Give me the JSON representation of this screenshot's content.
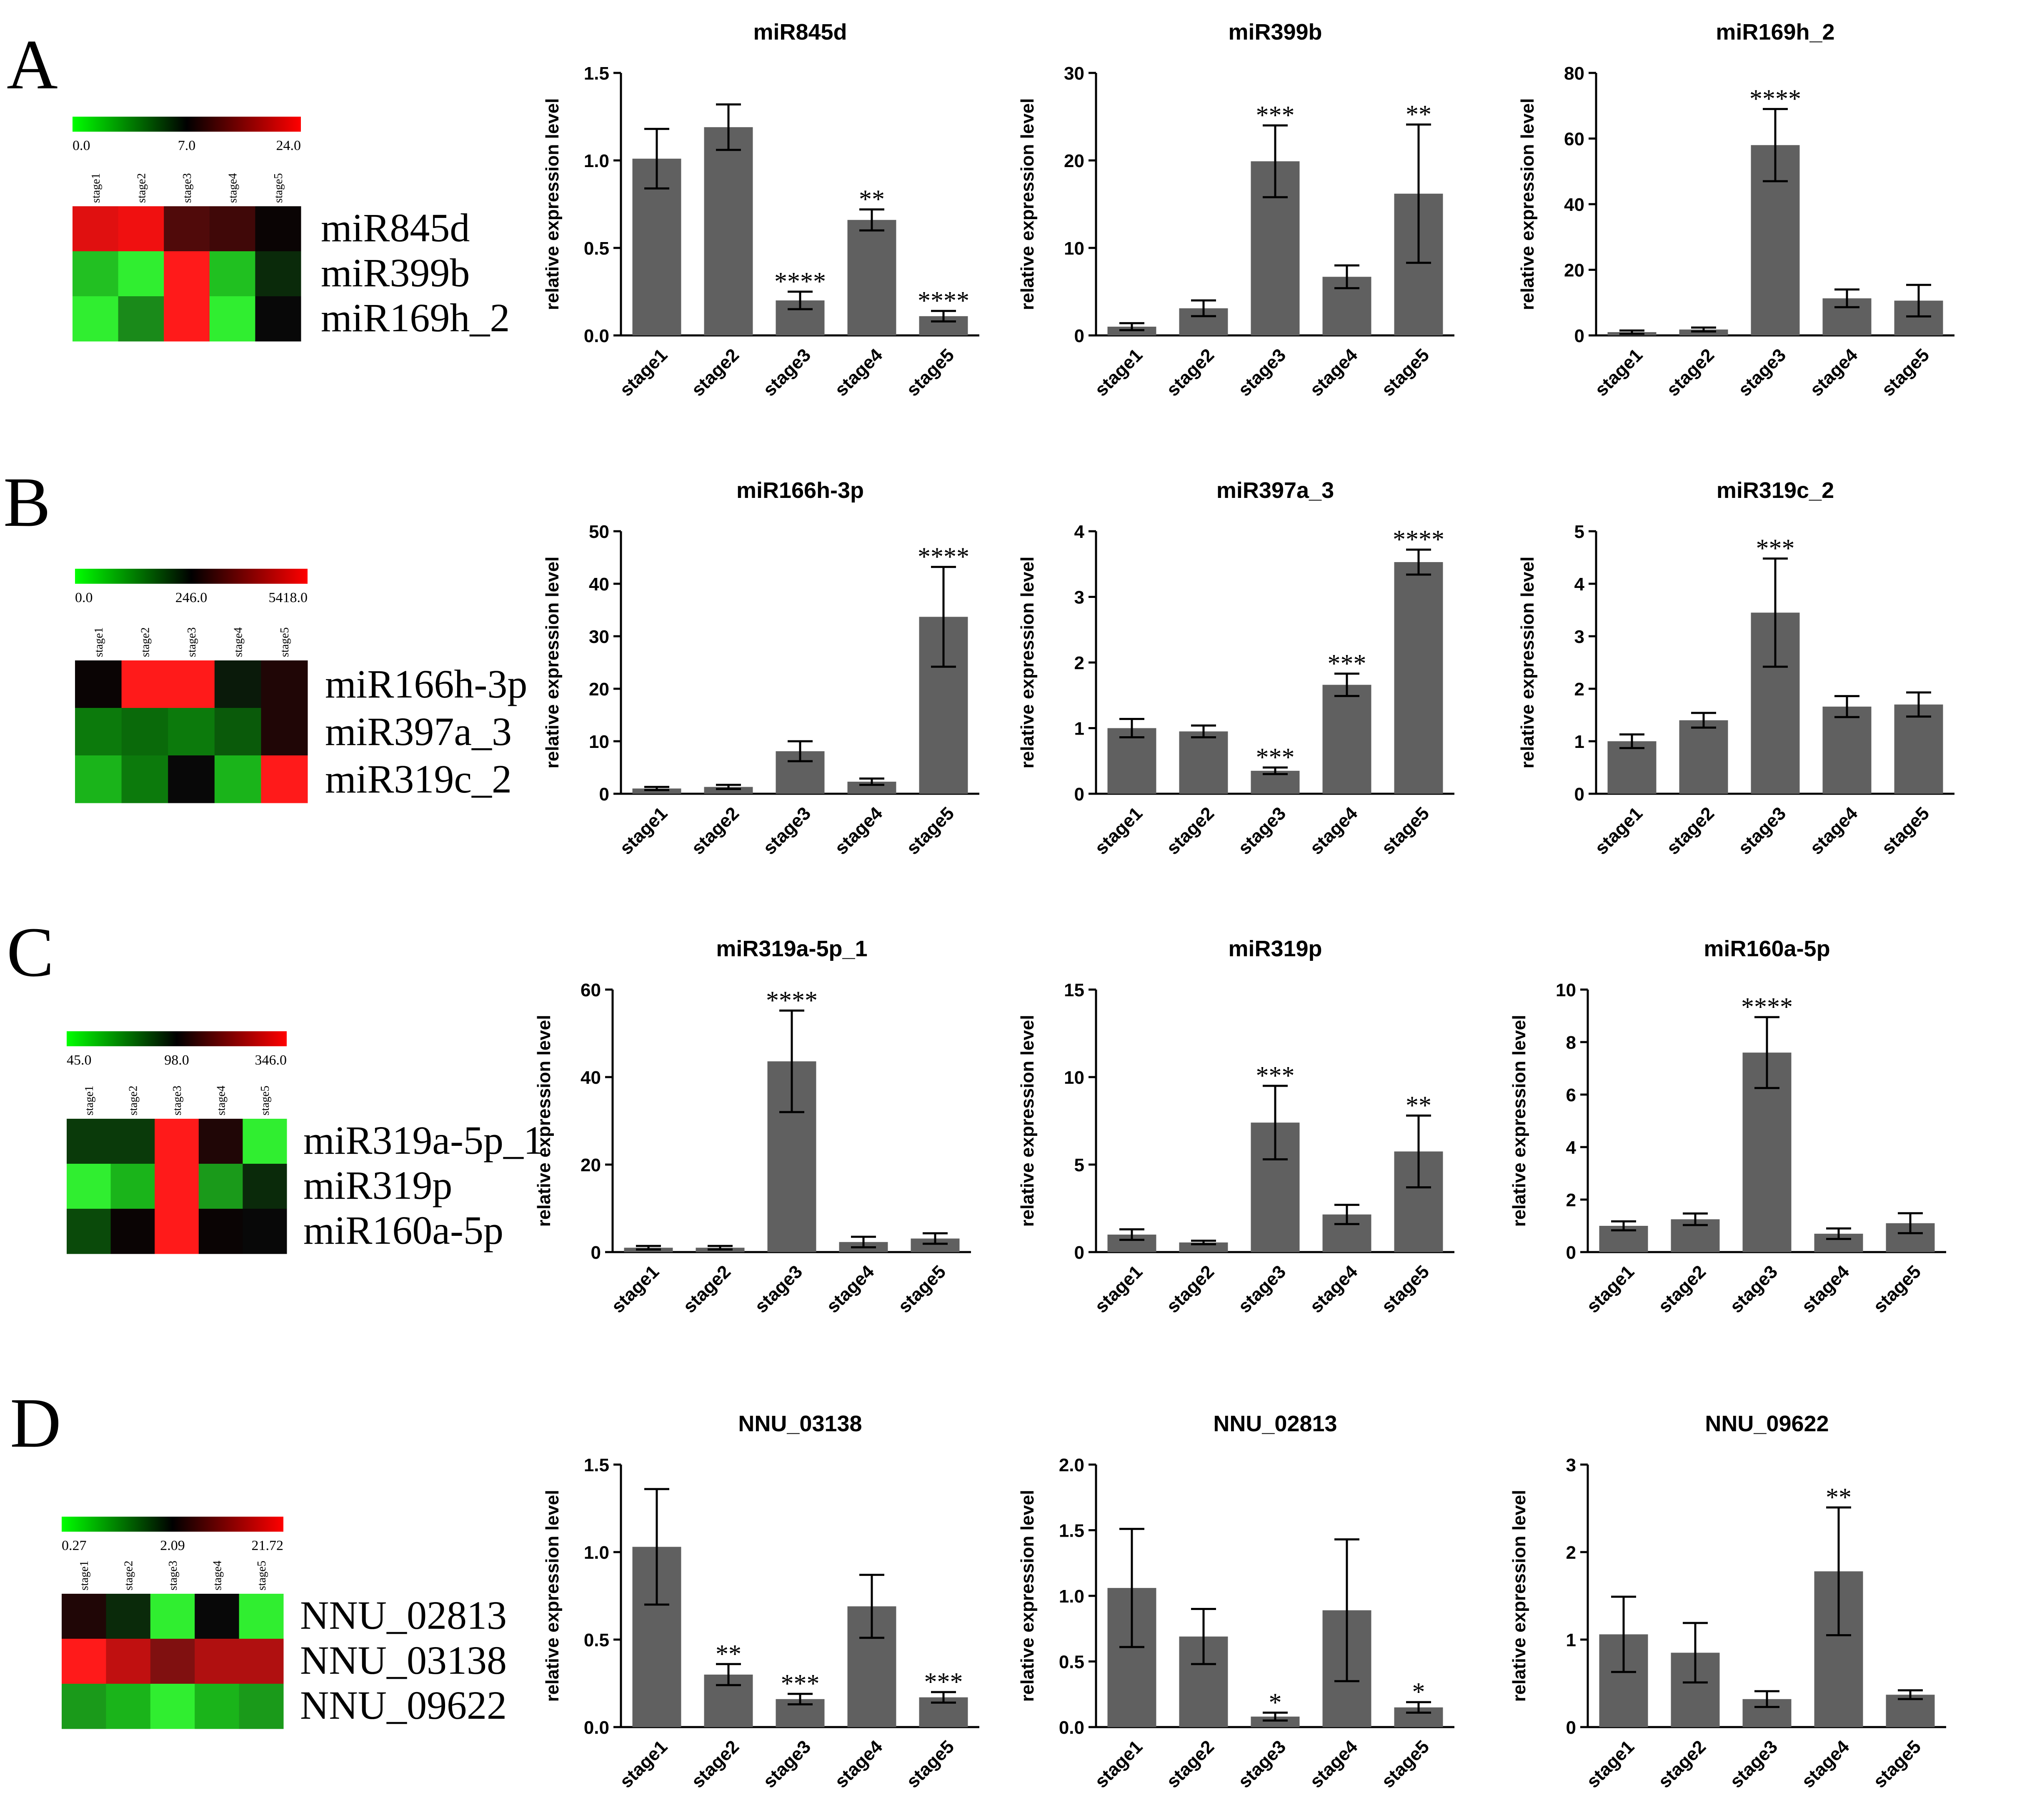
{
  "panels": [
    {
      "letter": "A",
      "heatmap": {
        "scale_labels": [
          "0.0",
          "7.0",
          "24.0"
        ],
        "stages": [
          "stage1",
          "stage2",
          "stage3",
          "stage4",
          "stage5"
        ],
        "rows": [
          {
            "label": "miR845d",
            "colors": [
              "#e01010",
              "#f01010",
              "#500a0a",
              "#400808",
              "#0a0404"
            ]
          },
          {
            "label": "miR399b",
            "colors": [
              "#22c022",
              "#30ee30",
              "#ff1a1a",
              "#20c020",
              "#0a2a0a"
            ]
          },
          {
            "label": "miR169h_2",
            "colors": [
              "#30ee30",
              "#1a8a1a",
              "#ff1a1a",
              "#30ee30",
              "#080808"
            ]
          }
        ]
      },
      "charts": [
        {
          "type": "bar",
          "title": "miR845d",
          "ylabel": "relative expression level",
          "categories": [
            "stage1",
            "stage2",
            "stage3",
            "stage4",
            "stage5"
          ],
          "values": [
            1.01,
            1.19,
            0.2,
            0.66,
            0.11
          ],
          "errors": [
            0.17,
            0.13,
            0.05,
            0.06,
            0.03
          ],
          "sig": [
            "",
            "",
            "****",
            "**",
            "****"
          ],
          "ylim": [
            0,
            1.5
          ],
          "yticks": [
            "0.0",
            "0.5",
            "1.0",
            "1.5"
          ]
        },
        {
          "type": "bar",
          "title": "miR399b",
          "ylabel": "relative expression level",
          "categories": [
            "stage1",
            "stage2",
            "stage3",
            "stage4",
            "stage5"
          ],
          "values": [
            1.0,
            3.1,
            19.9,
            6.7,
            16.2
          ],
          "errors": [
            0.4,
            0.9,
            4.1,
            1.3,
            7.9
          ],
          "sig": [
            "",
            "",
            "***",
            "",
            "**"
          ],
          "ylim": [
            0,
            30
          ],
          "yticks": [
            "0",
            "10",
            "20",
            "30"
          ]
        },
        {
          "type": "bar",
          "title": "miR169h_2",
          "ylabel": "relative expression level",
          "categories": [
            "stage1",
            "stage2",
            "stage3",
            "stage4",
            "stage5"
          ],
          "values": [
            1.0,
            1.8,
            58,
            11.3,
            10.6
          ],
          "errors": [
            0.5,
            0.6,
            11,
            2.7,
            4.8
          ],
          "sig": [
            "",
            "",
            "****",
            "",
            ""
          ],
          "ylim": [
            0,
            80
          ],
          "yticks": [
            "0",
            "20",
            "40",
            "60",
            "80"
          ]
        }
      ]
    },
    {
      "letter": "B",
      "heatmap": {
        "scale_labels": [
          "0.0",
          "246.0",
          "5418.0"
        ],
        "stages": [
          "stage1",
          "stage2",
          "stage3",
          "stage4",
          "stage5"
        ],
        "rows": [
          {
            "label": "miR166h-3p",
            "colors": [
              "#0a0404",
              "#ff1a1a",
              "#ff1a1a",
              "#0a1a0a",
              "#200606"
            ]
          },
          {
            "label": "miR397a_3",
            "colors": [
              "#0c7a0c",
              "#0a6a0a",
              "#0c7a0c",
              "#0a5a0a",
              "#200606"
            ]
          },
          {
            "label": "miR319c_2",
            "colors": [
              "#1ab41a",
              "#0c7a0c",
              "#080808",
              "#1ab41a",
              "#ff1a1a"
            ]
          }
        ]
      },
      "charts": [
        {
          "type": "bar",
          "title": "miR166h-3p",
          "ylabel": "relative expression level",
          "categories": [
            "stage1",
            "stage2",
            "stage3",
            "stage4",
            "stage5"
          ],
          "values": [
            1.0,
            1.3,
            8.1,
            2.3,
            33.7
          ],
          "errors": [
            0.3,
            0.4,
            1.9,
            0.6,
            9.5
          ],
          "sig": [
            "",
            "",
            "",
            "",
            "****"
          ],
          "ylim": [
            0,
            50
          ],
          "yticks": [
            "0",
            "10",
            "20",
            "30",
            "40",
            "50"
          ]
        },
        {
          "type": "bar",
          "title": "miR397a_3",
          "ylabel": "relative expression level",
          "categories": [
            "stage1",
            "stage2",
            "stage3",
            "stage4",
            "stage5"
          ],
          "values": [
            1.0,
            0.95,
            0.35,
            1.66,
            3.53
          ],
          "errors": [
            0.14,
            0.09,
            0.05,
            0.17,
            0.19
          ],
          "sig": [
            "",
            "",
            "***",
            "***",
            "****"
          ],
          "ylim": [
            0,
            4
          ],
          "yticks": [
            "0",
            "1",
            "2",
            "3",
            "4"
          ]
        },
        {
          "type": "bar",
          "title": "miR319c_2",
          "ylabel": "relative expression level",
          "categories": [
            "stage1",
            "stage2",
            "stage3",
            "stage4",
            "stage5"
          ],
          "values": [
            1.0,
            1.4,
            3.45,
            1.66,
            1.7
          ],
          "errors": [
            0.13,
            0.14,
            1.03,
            0.2,
            0.23
          ],
          "sig": [
            "",
            "",
            "***",
            "",
            ""
          ],
          "ylim": [
            0,
            5
          ],
          "yticks": [
            "0",
            "1",
            "2",
            "3",
            "4",
            "5"
          ]
        }
      ]
    },
    {
      "letter": "C",
      "heatmap": {
        "scale_labels": [
          "45.0",
          "98.0",
          "346.0"
        ],
        "stages": [
          "stage1",
          "stage2",
          "stage3",
          "stage4",
          "stage5"
        ],
        "rows": [
          {
            "label": "miR319a-5p_1",
            "colors": [
              "#0a3a0a",
              "#0a3a0a",
              "#ff1a1a",
              "#200606",
              "#30ee30"
            ]
          },
          {
            "label": "miR319p",
            "colors": [
              "#30ee30",
              "#1ab41a",
              "#ff1a1a",
              "#1a9a1a",
              "#0a2a0a"
            ]
          },
          {
            "label": "miR160a-5p",
            "colors": [
              "#0a4a0a",
              "#0a0404",
              "#ff1a1a",
              "#0a0404",
              "#080808"
            ]
          }
        ]
      },
      "charts": [
        {
          "type": "bar",
          "title": "miR319a-5p_1",
          "ylabel": "relative expression level",
          "categories": [
            "stage1",
            "stage2",
            "stage3",
            "stage4",
            "stage5"
          ],
          "values": [
            1.0,
            1.0,
            43.6,
            2.3,
            3.1
          ],
          "errors": [
            0.4,
            0.4,
            11.6,
            1.2,
            1.2
          ],
          "sig": [
            "",
            "",
            "****",
            "",
            ""
          ],
          "ylim": [
            0,
            60
          ],
          "yticks": [
            "0",
            "20",
            "40",
            "60"
          ]
        },
        {
          "type": "bar",
          "title": "miR319p",
          "ylabel": "relative expression level",
          "categories": [
            "stage1",
            "stage2",
            "stage3",
            "stage4",
            "stage5"
          ],
          "values": [
            1.0,
            0.55,
            7.4,
            2.15,
            5.75
          ],
          "errors": [
            0.3,
            0.1,
            2.1,
            0.55,
            2.05
          ],
          "sig": [
            "",
            "",
            "***",
            "",
            "**"
          ],
          "ylim": [
            0,
            15
          ],
          "yticks": [
            "0",
            "5",
            "10",
            "15"
          ]
        },
        {
          "type": "bar",
          "title": "miR160a-5p",
          "ylabel": "relative expression level",
          "categories": [
            "stage1",
            "stage2",
            "stage3",
            "stage4",
            "stage5"
          ],
          "values": [
            1.0,
            1.25,
            7.6,
            0.7,
            1.1
          ],
          "errors": [
            0.17,
            0.22,
            1.35,
            0.2,
            0.38
          ],
          "sig": [
            "",
            "",
            "****",
            "",
            ""
          ],
          "ylim": [
            0,
            10
          ],
          "yticks": [
            "0",
            "2",
            "4",
            "6",
            "8",
            "10"
          ]
        }
      ]
    },
    {
      "letter": "D",
      "heatmap": {
        "scale_labels": [
          "0.27",
          "2.09",
          "21.72"
        ],
        "stages": [
          "stage1",
          "stage2",
          "stage3",
          "stage4",
          "stage5"
        ],
        "rows": [
          {
            "label": "NNU_02813",
            "colors": [
              "#200606",
              "#0a2a0a",
              "#30ee30",
              "#080808",
              "#30ee30"
            ]
          },
          {
            "label": "NNU_03138",
            "colors": [
              "#ff1a1a",
              "#c01010",
              "#801010",
              "#b01010",
              "#b01010"
            ]
          },
          {
            "label": "NNU_09622",
            "colors": [
              "#1a9a1a",
              "#1ab41a",
              "#30ee30",
              "#1ab41a",
              "#1a9a1a"
            ]
          }
        ]
      },
      "charts": [
        {
          "type": "bar",
          "title": "NNU_03138",
          "ylabel": "relative expression level",
          "categories": [
            "stage1",
            "stage2",
            "stage3",
            "stage4",
            "stage5"
          ],
          "values": [
            1.03,
            0.3,
            0.16,
            0.69,
            0.17
          ],
          "errors": [
            0.33,
            0.06,
            0.03,
            0.18,
            0.03
          ],
          "sig": [
            "",
            "**",
            "***",
            "",
            "***"
          ],
          "ylim": [
            0,
            1.5
          ],
          "yticks": [
            "0.0",
            "0.5",
            "1.0",
            "1.5"
          ]
        },
        {
          "type": "bar",
          "title": "NNU_02813",
          "ylabel": "relative expression level",
          "categories": [
            "stage1",
            "stage2",
            "stage3",
            "stage4",
            "stage5"
          ],
          "values": [
            1.06,
            0.69,
            0.08,
            0.89,
            0.15
          ],
          "errors": [
            0.45,
            0.21,
            0.03,
            0.54,
            0.04
          ],
          "sig": [
            "",
            "",
            "*",
            "",
            "*"
          ],
          "ylim": [
            0,
            2.0
          ],
          "yticks": [
            "0.0",
            "0.5",
            "1.0",
            "1.5",
            "2.0"
          ]
        },
        {
          "type": "bar",
          "title": "NNU_09622",
          "ylabel": "relative expression level",
          "categories": [
            "stage1",
            "stage2",
            "stage3",
            "stage4",
            "stage5"
          ],
          "values": [
            1.06,
            0.85,
            0.32,
            1.78,
            0.37
          ],
          "errors": [
            0.43,
            0.34,
            0.09,
            0.73,
            0.05
          ],
          "sig": [
            "",
            "",
            "",
            "**",
            ""
          ],
          "ylim": [
            0,
            3
          ],
          "yticks": [
            "0",
            "1",
            "2",
            "3"
          ]
        }
      ]
    }
  ],
  "colors": {
    "bar": "#606060",
    "axis": "#000000",
    "low": "#00ff00",
    "mid": "#000000",
    "high": "#ff0000"
  }
}
